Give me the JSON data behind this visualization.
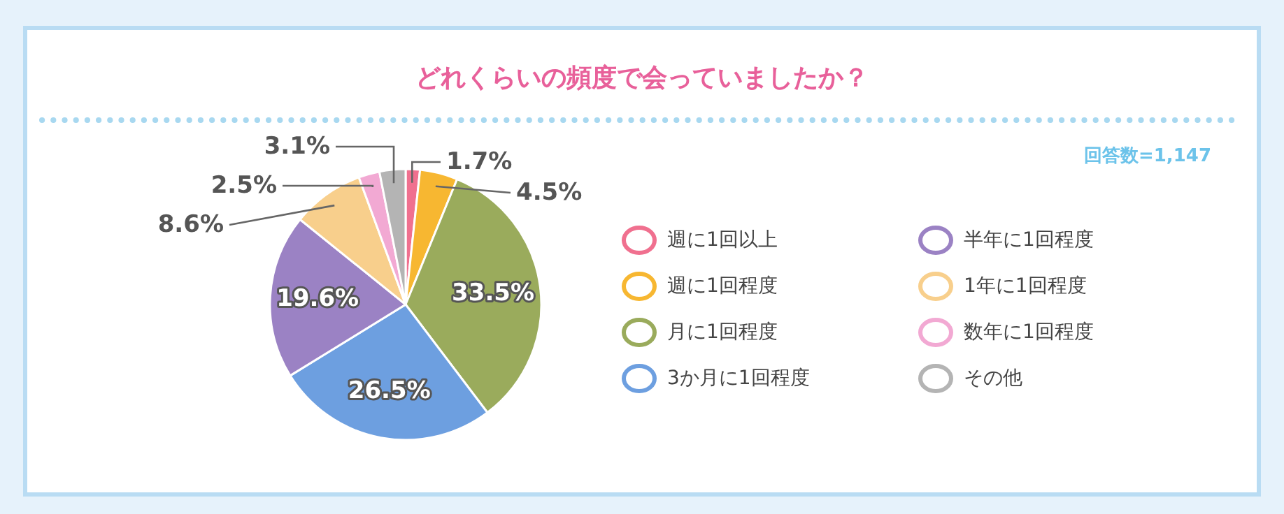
{
  "chart_data": {
    "type": "pie",
    "title": "どれくらいの頻度で会っていましたか？",
    "annotations": [
      "回答数=1,147"
    ],
    "categories": [
      "週に1回以上",
      "週に1回程度",
      "月に1回程度",
      "3か月に1回程度",
      "半年に1回程度",
      "1年に1回程度",
      "数年に1回程度",
      "その他"
    ],
    "values": [
      1.7,
      4.5,
      33.5,
      26.5,
      19.6,
      8.6,
      2.5,
      3.1
    ],
    "value_labels": [
      "1.7%",
      "4.5%",
      "33.5%",
      "26.5%",
      "19.6%",
      "8.6%",
      "2.5%",
      "3.1%"
    ],
    "colors": [
      "#f0708f",
      "#f7b731",
      "#9aab5c",
      "#6d9fe0",
      "#9b82c4",
      "#f8cf8c",
      "#f2a9d3",
      "#b4b4b4"
    ],
    "legend": "right"
  }
}
